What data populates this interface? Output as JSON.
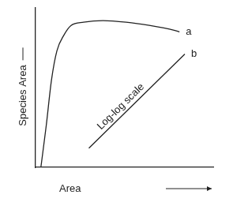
{
  "chart_data": {
    "type": "line",
    "x_label": "Area",
    "y_label": "Species Area",
    "xlim": [
      0,
      100
    ],
    "ylim": [
      0,
      100
    ],
    "tick_labels": false,
    "grid": false,
    "series": [
      {
        "name": "a",
        "color": "#222222",
        "x": [
          3,
          6,
          9,
          12,
          16,
          20,
          27,
          38,
          51,
          64,
          78,
          81
        ],
        "values": [
          0,
          26,
          55,
          73,
          83,
          89,
          91,
          92,
          91,
          89,
          86,
          85
        ]
      },
      {
        "name": "b",
        "color": "#222222",
        "x": [
          30,
          84
        ],
        "values": [
          12,
          71
        ]
      }
    ],
    "annotations": [
      {
        "text": "Log-log scale",
        "x": 48,
        "y": 38
      }
    ]
  }
}
